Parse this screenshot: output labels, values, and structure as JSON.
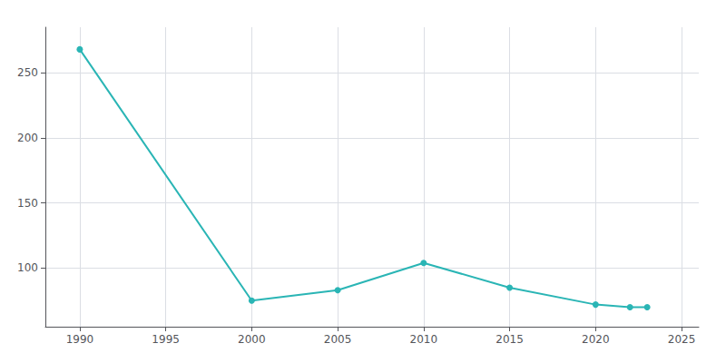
{
  "chart_data": {
    "type": "line",
    "x": [
      1990,
      2000,
      2005,
      2010,
      2015,
      2020,
      2022,
      2023
    ],
    "values": [
      268,
      75,
      83,
      104,
      85,
      72,
      70,
      70
    ],
    "color": "#2ab5b5",
    "marker": "circle",
    "xlim": [
      1988,
      2026
    ],
    "xticks": [
      1990,
      1995,
      2000,
      2005,
      2010,
      2015,
      2020,
      2025
    ],
    "ylim": [
      55,
      285
    ],
    "yticks": [
      100,
      150,
      200,
      250
    ],
    "grid": true
  }
}
